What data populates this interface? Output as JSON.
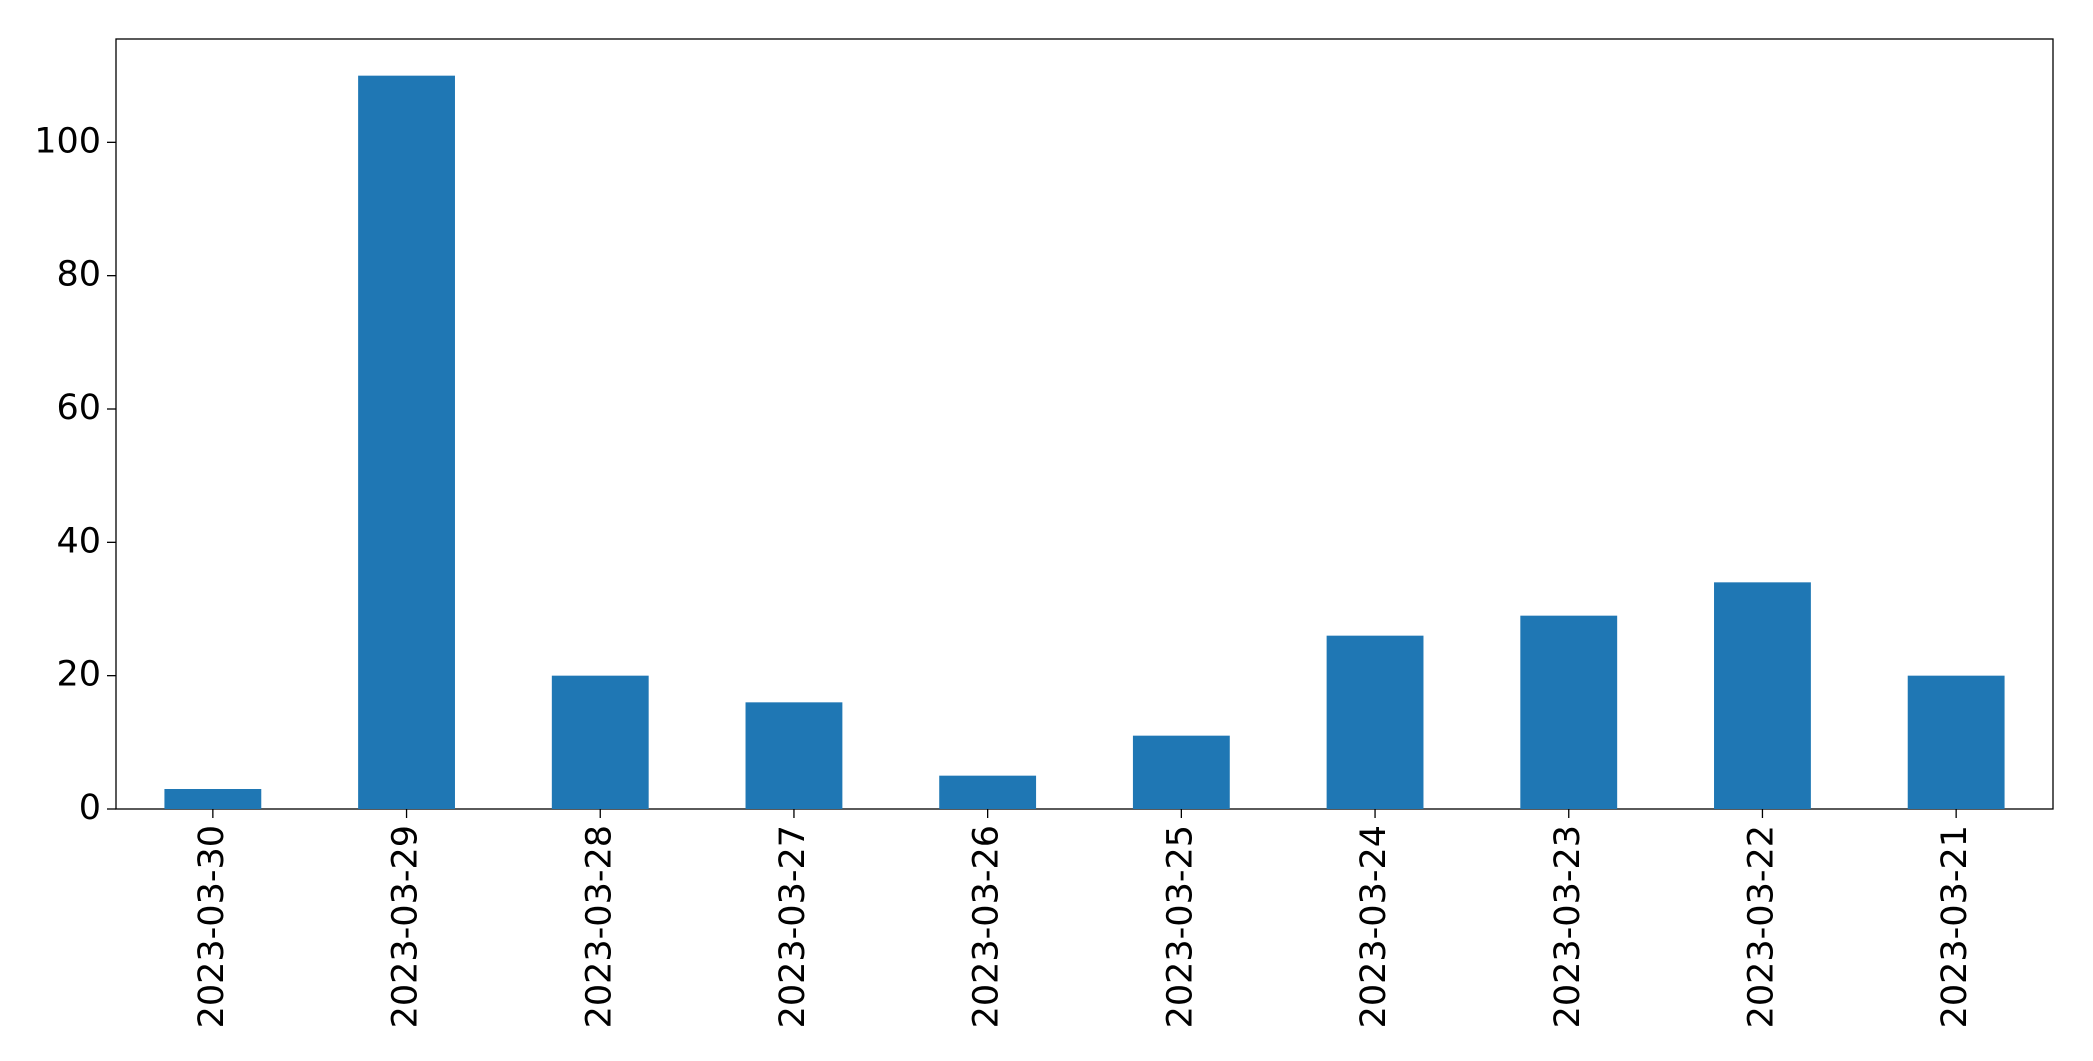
{
  "chart_data": {
    "type": "bar",
    "categories": [
      "2023-03-30",
      "2023-03-29",
      "2023-03-28",
      "2023-03-27",
      "2023-03-26",
      "2023-03-25",
      "2023-03-24",
      "2023-03-23",
      "2023-03-22",
      "2023-03-21"
    ],
    "values": [
      3,
      110,
      20,
      16,
      5,
      11,
      26,
      29,
      34,
      20
    ],
    "color": "#1f77b4",
    "ylim": [
      0,
      115.5
    ],
    "yticks": [
      0,
      20,
      40,
      60,
      80,
      100
    ],
    "grid": false
  }
}
